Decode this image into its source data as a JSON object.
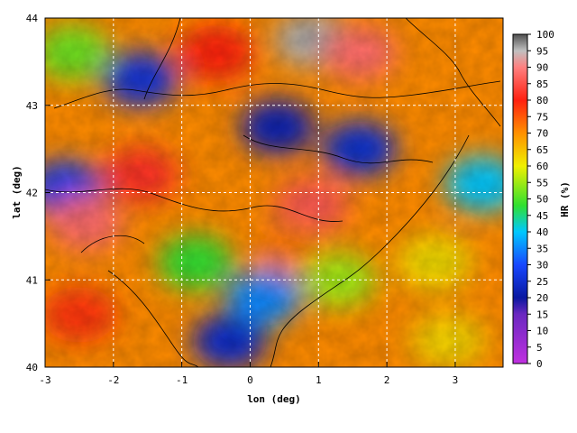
{
  "chart_data": {
    "type": "heatmap",
    "title": "",
    "xlabel": "lon (deg)",
    "ylabel": "lat (deg)",
    "xlim": [
      -3,
      3.7
    ],
    "ylim": [
      40,
      44
    ],
    "xticks": [
      -3,
      -2,
      -1,
      0,
      1,
      2,
      3
    ],
    "yticks": [
      40,
      41,
      42,
      43,
      44
    ],
    "grid": true,
    "colorbar": {
      "label": "HR (%)",
      "min": 0,
      "max": 100,
      "ticks": [
        0,
        5,
        10,
        15,
        20,
        25,
        30,
        35,
        40,
        45,
        50,
        55,
        60,
        65,
        70,
        75,
        80,
        85,
        90,
        95,
        100
      ],
      "colors": {
        "0": "#c030e0",
        "15": "#6a28c0",
        "20": "#0a18a0",
        "30": "#1848ff",
        "40": "#00c8ff",
        "48": "#30e030",
        "60": "#f0f000",
        "70": "#ff9000",
        "80": "#ff2010",
        "90": "#ff8080",
        "95": "#c0c0c0",
        "100": "#505050"
      }
    },
    "field_regions": [
      {
        "lon": 0.4,
        "lat": 42.75,
        "hr": 22
      },
      {
        "lon": 1.6,
        "lat": 42.5,
        "hr": 25
      },
      {
        "lon": -1.6,
        "lat": 43.3,
        "hr": 26
      },
      {
        "lon": -2.7,
        "lat": 42.05,
        "hr": 28
      },
      {
        "lon": -0.3,
        "lat": 40.3,
        "hr": 24
      },
      {
        "lon": 0.9,
        "lat": 43.75,
        "hr": 96
      },
      {
        "lon": 1.6,
        "lat": 43.6,
        "hr": 88
      },
      {
        "lon": 0.9,
        "lat": 41.85,
        "hr": 86
      },
      {
        "lon": -2.4,
        "lat": 41.65,
        "hr": 88
      },
      {
        "lon": -1.6,
        "lat": 42.2,
        "hr": 82
      },
      {
        "lon": -2.5,
        "lat": 40.6,
        "hr": 78
      },
      {
        "lon": 0.6,
        "lat": 41.35,
        "hr": 72
      },
      {
        "lon": 2.7,
        "lat": 41.2,
        "hr": 62
      },
      {
        "lon": 2.9,
        "lat": 40.3,
        "hr": 63
      },
      {
        "lon": 3.4,
        "lat": 42.1,
        "hr": 40
      },
      {
        "lon": -2.6,
        "lat": 43.6,
        "hr": 52
      },
      {
        "lon": 0.2,
        "lat": 40.8,
        "hr": 35
      },
      {
        "lon": -0.8,
        "lat": 41.2,
        "hr": 48
      },
      {
        "lon": 1.3,
        "lat": 41.0,
        "hr": 55
      },
      {
        "lon": -0.5,
        "lat": 43.6,
        "hr": 80
      }
    ]
  }
}
